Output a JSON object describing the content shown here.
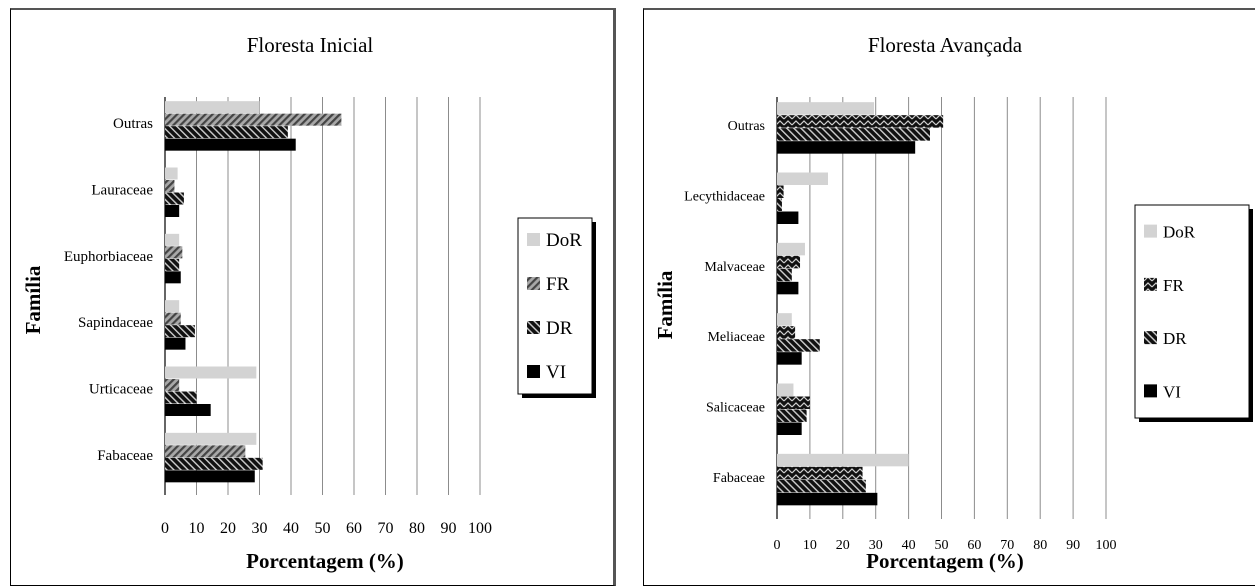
{
  "chart_data": [
    {
      "type": "bar",
      "orientation": "horizontal",
      "title": "Floresta Inicial",
      "xlabel": "Porcentagem (%)",
      "ylabel": "Família",
      "xlim": [
        0,
        100
      ],
      "xticks": [
        0,
        10,
        20,
        30,
        40,
        50,
        60,
        70,
        80,
        90,
        100
      ],
      "grid": "vertical",
      "legend_position": "right",
      "categories": [
        "Outras",
        "Lauraceae",
        "Euphorbiaceae",
        "Sapindaceae",
        "Urticaceae",
        "Fabaceae"
      ],
      "series": [
        {
          "name": "DoR",
          "pattern": "solid-light",
          "color": "#d3d3d3",
          "values": [
            30,
            4,
            4.5,
            4.5,
            29,
            29
          ]
        },
        {
          "name": "FR",
          "pattern": "diagonal-hatch",
          "color": "#6e6e6e",
          "values": [
            56,
            3,
            5.5,
            5,
            4.5,
            25.5
          ]
        },
        {
          "name": "DR",
          "pattern": "cross-hatch-dark",
          "color": "#2a2a2a",
          "values": [
            39,
            6,
            4.5,
            9.5,
            10,
            31
          ]
        },
        {
          "name": "VI",
          "pattern": "solid-dark",
          "color": "#000000",
          "values": [
            41.5,
            4.5,
            5,
            6.5,
            14.5,
            28.5
          ]
        }
      ]
    },
    {
      "type": "bar",
      "orientation": "horizontal",
      "title": "Floresta Avançada",
      "xlabel": "Porcentagem (%)",
      "ylabel": "Família",
      "xlim": [
        0,
        100
      ],
      "xticks": [
        0,
        10,
        20,
        30,
        40,
        50,
        60,
        70,
        80,
        90,
        100
      ],
      "grid": "vertical",
      "legend_position": "right",
      "categories": [
        "Outras",
        "Lecythidaceae",
        "Malvaceae",
        "Meliaceae",
        "Salicaceae",
        "Fabaceae"
      ],
      "series": [
        {
          "name": "DoR",
          "pattern": "solid-light",
          "color": "#d3d3d3",
          "values": [
            29.5,
            15.5,
            8.5,
            4.5,
            5,
            40
          ]
        },
        {
          "name": "FR",
          "pattern": "zigzag-hatch",
          "color": "#222222",
          "values": [
            50.5,
            2,
            7,
            5.5,
            10,
            26
          ]
        },
        {
          "name": "DR",
          "pattern": "cross-hatch-dark",
          "color": "#2a2a2a",
          "values": [
            46.5,
            1.5,
            4.5,
            13,
            9,
            27
          ]
        },
        {
          "name": "VI",
          "pattern": "solid-dark",
          "color": "#000000",
          "values": [
            42,
            6.5,
            6.5,
            7.5,
            7.5,
            30.5
          ]
        }
      ]
    }
  ]
}
